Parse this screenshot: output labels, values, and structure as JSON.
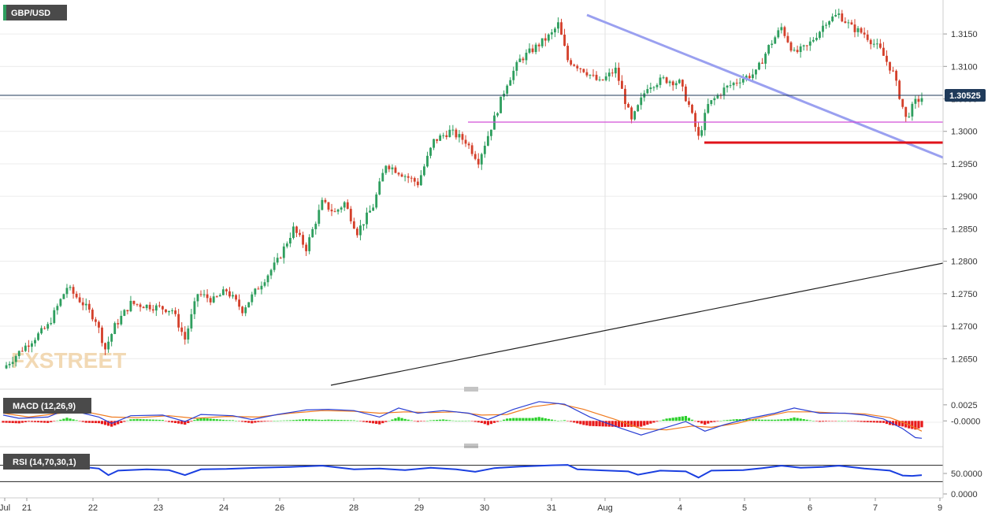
{
  "symbol": "GBP/USD",
  "watermark": "FXSTREET",
  "current_price_label": "1.30525",
  "macd_label": "MACD (12,26,9)",
  "rsi_label": "RSI (14,70,30,1)",
  "colors": {
    "up": "#2e9e5e",
    "down": "#d4402b",
    "trendline_desc": "#9aa0f0",
    "trendline_asc": "#222222",
    "support_magenta": "#d24fd8",
    "support_red": "#e0121a",
    "macd_line": "#2a3fd4",
    "signal_line": "#f07a1d",
    "hist_pos": "#2ad02a",
    "hist_neg": "#e8191a",
    "rsi_line": "#1a3fe0",
    "label_bg": "#4a4a4a",
    "price_tag_bg": "#1f3a5a"
  },
  "chart_data": [
    {
      "type": "candlestick",
      "title": "GBP/USD",
      "ylim": [
        1.262,
        1.3195
      ],
      "yticks": [
        "1.3150",
        "1.3100",
        "1.3050",
        "1.3000",
        "1.2950",
        "1.2900",
        "1.2850",
        "1.2800",
        "1.2750",
        "1.2700",
        "1.2650"
      ],
      "x_labels": [
        "Jul",
        "21",
        "22",
        "23",
        "24",
        "26",
        "28",
        "29",
        "30",
        "31",
        "Aug",
        "4",
        "5",
        "6",
        "7",
        "9"
      ],
      "close_path": [
        [
          0,
          1.2635
        ],
        [
          6,
          1.2665
        ],
        [
          14,
          1.27
        ],
        [
          20,
          1.276
        ],
        [
          25,
          1.2735
        ],
        [
          29,
          1.271
        ],
        [
          32,
          1.2665
        ],
        [
          35,
          1.27
        ],
        [
          40,
          1.2735
        ],
        [
          47,
          1.273
        ],
        [
          53,
          1.2725
        ],
        [
          57,
          1.268
        ],
        [
          61,
          1.275
        ],
        [
          66,
          1.274
        ],
        [
          70,
          1.2755
        ],
        [
          75,
          1.2725
        ],
        [
          80,
          1.276
        ],
        [
          86,
          1.28
        ],
        [
          91,
          1.285
        ],
        [
          95,
          1.282
        ],
        [
          100,
          1.289
        ],
        [
          104,
          1.2875
        ],
        [
          107,
          1.289
        ],
        [
          111,
          1.2845
        ],
        [
          116,
          1.2885
        ],
        [
          120,
          1.295
        ],
        [
          125,
          1.2935
        ],
        [
          130,
          1.292
        ],
        [
          135,
          1.2985
        ],
        [
          140,
          1.3
        ],
        [
          145,
          1.2985
        ],
        [
          149,
          1.2955
        ],
        [
          154,
          1.302
        ],
        [
          158,
          1.3075
        ],
        [
          162,
          1.311
        ],
        [
          167,
          1.313
        ],
        [
          172,
          1.315
        ],
        [
          174,
          1.3165
        ],
        [
          177,
          1.311
        ],
        [
          182,
          1.3095
        ],
        [
          187,
          1.3075
        ],
        [
          192,
          1.3095
        ],
        [
          197,
          1.3015
        ],
        [
          202,
          1.307
        ],
        [
          207,
          1.308
        ],
        [
          212,
          1.3075
        ],
        [
          215,
          1.304
        ],
        [
          218,
          1.299
        ],
        [
          221,
          1.304
        ],
        [
          226,
          1.3065
        ],
        [
          231,
          1.308
        ],
        [
          236,
          1.309
        ],
        [
          240,
          1.313
        ],
        [
          244,
          1.316
        ],
        [
          248,
          1.312
        ],
        [
          252,
          1.313
        ],
        [
          256,
          1.3155
        ],
        [
          258,
          1.317
        ],
        [
          262,
          1.318
        ],
        [
          266,
          1.316
        ],
        [
          270,
          1.315
        ],
        [
          275,
          1.3125
        ],
        [
          279,
          1.309
        ],
        [
          283,
          1.302
        ],
        [
          286,
          1.3045
        ],
        [
          288,
          1.3052
        ]
      ],
      "rsi": {
        "ylim": [
          0,
          100
        ],
        "levels": [
          30,
          70
        ],
        "yticks": [
          "50.0000",
          "0.0000"
        ],
        "path": [
          [
            0,
            67
          ],
          [
            10,
            63
          ],
          [
            20,
            70
          ],
          [
            30,
            62
          ],
          [
            33,
            46
          ],
          [
            36,
            57
          ],
          [
            45,
            60
          ],
          [
            52,
            58
          ],
          [
            57,
            46
          ],
          [
            62,
            60
          ],
          [
            70,
            61
          ],
          [
            80,
            64
          ],
          [
            90,
            66
          ],
          [
            100,
            69
          ],
          [
            110,
            60
          ],
          [
            118,
            62
          ],
          [
            126,
            58
          ],
          [
            134,
            64
          ],
          [
            142,
            60
          ],
          [
            148,
            54
          ],
          [
            154,
            63
          ],
          [
            162,
            67
          ],
          [
            172,
            70
          ],
          [
            177,
            71
          ],
          [
            180,
            60
          ],
          [
            186,
            58
          ],
          [
            196,
            55
          ],
          [
            199,
            47
          ],
          [
            206,
            57
          ],
          [
            214,
            55
          ],
          [
            218,
            40
          ],
          [
            222,
            57
          ],
          [
            232,
            58
          ],
          [
            238,
            63
          ],
          [
            244,
            69
          ],
          [
            250,
            64
          ],
          [
            257,
            66
          ],
          [
            262,
            69
          ],
          [
            270,
            62
          ],
          [
            278,
            57
          ],
          [
            282,
            45
          ],
          [
            285,
            44
          ],
          [
            288,
            46
          ]
        ]
      },
      "macd": {
        "yticks": [
          "0.0025",
          "-0.0000"
        ],
        "macd_path": [
          [
            0,
            0.0009
          ],
          [
            5,
            0.0004
          ],
          [
            14,
            0.0006
          ],
          [
            20,
            0.0018
          ],
          [
            25,
            0.0012
          ],
          [
            30,
            0.0006
          ],
          [
            34,
            -0.0004
          ],
          [
            40,
            0.0008
          ],
          [
            50,
            0.0009
          ],
          [
            57,
            -0.0001
          ],
          [
            62,
            0.001
          ],
          [
            72,
            0.0008
          ],
          [
            78,
            0.0002
          ],
          [
            86,
            0.001
          ],
          [
            95,
            0.0017
          ],
          [
            102,
            0.0018
          ],
          [
            110,
            0.0016
          ],
          [
            118,
            0.0006
          ],
          [
            124,
            0.002
          ],
          [
            130,
            0.0012
          ],
          [
            138,
            0.0016
          ],
          [
            146,
            0.0012
          ],
          [
            152,
            0.0002
          ],
          [
            160,
            0.0018
          ],
          [
            168,
            0.003
          ],
          [
            176,
            0.0026
          ],
          [
            184,
            0.0006
          ],
          [
            194,
            -0.0012
          ],
          [
            200,
            -0.0022
          ],
          [
            208,
            -0.001
          ],
          [
            214,
            -0.0001
          ],
          [
            220,
            -0.0016
          ],
          [
            226,
            -0.0006
          ],
          [
            234,
            0.0004
          ],
          [
            242,
            0.0012
          ],
          [
            248,
            0.002
          ],
          [
            256,
            0.0012
          ],
          [
            264,
            0.0012
          ],
          [
            270,
            0.0009
          ],
          [
            276,
            0.0003
          ],
          [
            282,
            -0.0012
          ],
          [
            286,
            -0.0026
          ],
          [
            288,
            -0.0027
          ]
        ],
        "signal_path": [
          [
            0,
            0.0012
          ],
          [
            8,
            0.0006
          ],
          [
            18,
            0.0012
          ],
          [
            26,
            0.0014
          ],
          [
            34,
            0.0006
          ],
          [
            42,
            0.0005
          ],
          [
            52,
            0.0008
          ],
          [
            60,
            0.0004
          ],
          [
            70,
            0.0007
          ],
          [
            80,
            0.0006
          ],
          [
            90,
            0.0012
          ],
          [
            100,
            0.0016
          ],
          [
            110,
            0.0015
          ],
          [
            118,
            0.0012
          ],
          [
            126,
            0.0014
          ],
          [
            134,
            0.0013
          ],
          [
            142,
            0.0014
          ],
          [
            150,
            0.0009
          ],
          [
            158,
            0.001
          ],
          [
            166,
            0.0022
          ],
          [
            174,
            0.0027
          ],
          [
            182,
            0.0018
          ],
          [
            192,
            0.0002
          ],
          [
            200,
            -0.0012
          ],
          [
            208,
            -0.0014
          ],
          [
            216,
            -0.0008
          ],
          [
            222,
            -0.001
          ],
          [
            230,
            -0.0004
          ],
          [
            238,
            0.0006
          ],
          [
            246,
            0.0014
          ],
          [
            254,
            0.0014
          ],
          [
            262,
            0.0012
          ],
          [
            270,
            0.0011
          ],
          [
            278,
            0.0005
          ],
          [
            284,
            -0.0006
          ],
          [
            288,
            -0.0016
          ]
        ],
        "ylim": [
          -0.0034,
          0.0042
        ]
      }
    }
  ]
}
